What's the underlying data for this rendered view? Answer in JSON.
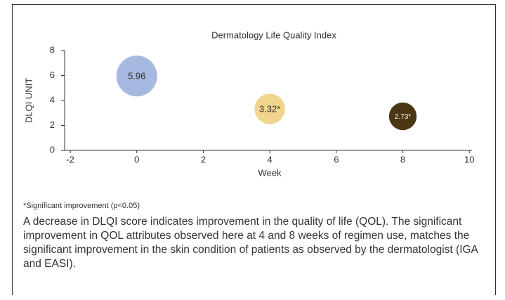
{
  "chart_data": {
    "type": "bubble",
    "title": "Dermatology Life Quality Index",
    "x_label": "Week",
    "y_label": "DLQI UNIT",
    "x": [
      0,
      4,
      8
    ],
    "values": [
      5.96,
      3.32,
      2.73
    ],
    "value_labels": [
      "5.96",
      "3.32*",
      "2.73*"
    ],
    "colors": [
      "#a7b9e1",
      "#f1d58c",
      "#4a3613"
    ],
    "label_colors": [
      "#333333",
      "#333333",
      "#ffffff"
    ],
    "xlim": [
      -2.17,
      10.08
    ],
    "xticks": [
      -2,
      0,
      2,
      4,
      6,
      8,
      10
    ],
    "ylim": [
      0,
      8
    ],
    "yticks": [
      0,
      2,
      4,
      6,
      8
    ]
  },
  "footnote": "*Significant improvement (p<0.05)",
  "description": "A decrease in DLQI score indicates improvement in the quality of life (QOL). The significant improvement in QOL attributes observed here at 4 and 8 weeks of regimen use, matches the significant improvement in the skin condition of patients as observed by the dermatologist (IGA and EASI)."
}
